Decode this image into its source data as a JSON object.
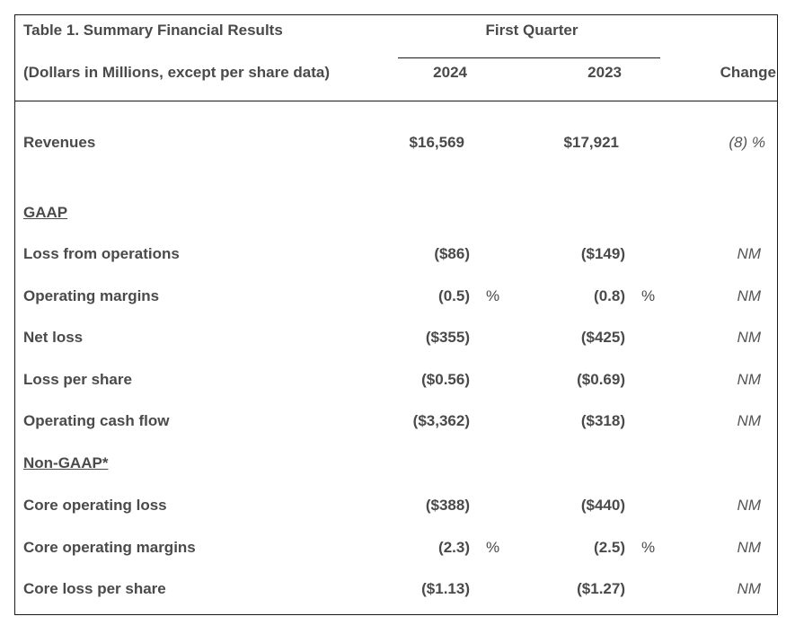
{
  "table": {
    "title": "Table 1. Summary Financial Results",
    "subtitle": "(Dollars in Millions, except per share data)",
    "period_header": "First Quarter",
    "col_2024": "2024",
    "col_2023": "2023",
    "col_change": "Change",
    "revenues": {
      "label": "Revenues",
      "v2024": "$16,569",
      "v2023": "$17,921",
      "change": "(8) %"
    },
    "gaap_label": "GAAP",
    "non_gaap_label": "Non-GAAP*",
    "gaap_rows": [
      {
        "label": "Loss from operations",
        "v2024": "($86)",
        "pct2024": "",
        "v2023": "($149)",
        "pct2023": "",
        "change": "NM"
      },
      {
        "label": "Operating margins",
        "v2024": "(0.5)",
        "pct2024": "%",
        "v2023": "(0.8)",
        "pct2023": "%",
        "change": "NM"
      },
      {
        "label": "Net loss",
        "v2024": "($355)",
        "pct2024": "",
        "v2023": "($425)",
        "pct2023": "",
        "change": "NM"
      },
      {
        "label": "Loss per share",
        "v2024": "($0.56)",
        "pct2024": "",
        "v2023": "($0.69)",
        "pct2023": "",
        "change": "NM"
      },
      {
        "label": "Operating cash flow",
        "v2024": "($3,362)",
        "pct2024": "",
        "v2023": "($318)",
        "pct2023": "",
        "change": "NM"
      }
    ],
    "non_gaap_rows": [
      {
        "label": "Core operating loss",
        "v2024": "($388)",
        "pct2024": "",
        "v2023": "($440)",
        "pct2023": "",
        "change": "NM"
      },
      {
        "label": "Core operating margins",
        "v2024": "(2.3)",
        "pct2024": "%",
        "v2023": "(2.5)",
        "pct2023": "%",
        "change": "NM"
      },
      {
        "label": "Core loss per share",
        "v2024": "($1.13)",
        "pct2024": "",
        "v2023": "($1.27)",
        "pct2023": "",
        "change": "NM"
      }
    ]
  }
}
